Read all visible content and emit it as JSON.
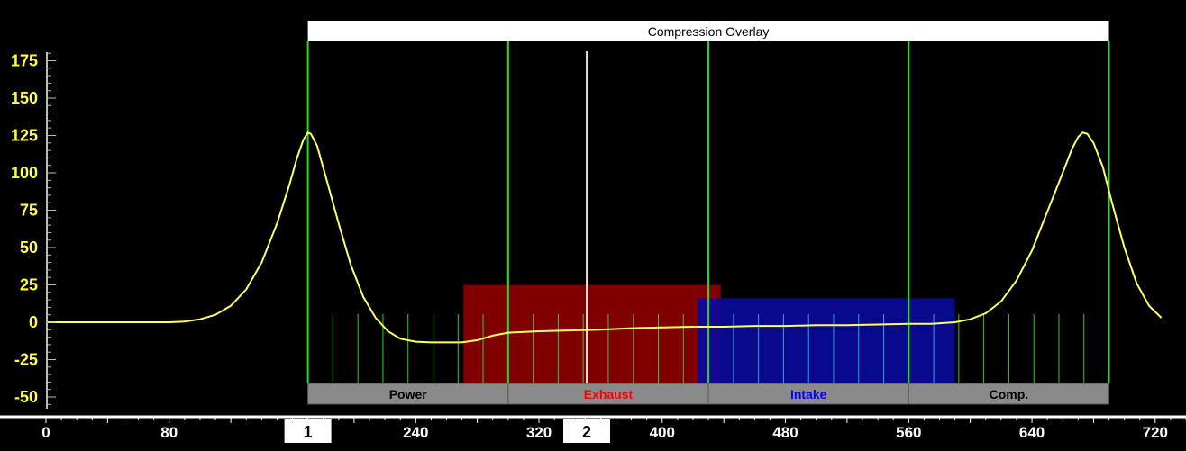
{
  "chart_data": {
    "type": "line",
    "title": "Compression Overlay",
    "xlim": [
      0,
      740
    ],
    "ylim": [
      -60,
      185
    ],
    "x_ticks": [
      0,
      80,
      240,
      320,
      400,
      480,
      560,
      640,
      720
    ],
    "y_ticks": [
      175,
      150,
      125,
      100,
      75,
      50,
      25,
      0,
      -25,
      -50
    ],
    "series": [
      {
        "color": "#ffff66",
        "points": [
          [
            0,
            0
          ],
          [
            60,
            0
          ],
          [
            80,
            0
          ],
          [
            90,
            0.5
          ],
          [
            100,
            2
          ],
          [
            110,
            5
          ],
          [
            120,
            11
          ],
          [
            130,
            22
          ],
          [
            140,
            40
          ],
          [
            150,
            66
          ],
          [
            158,
            92
          ],
          [
            163,
            110
          ],
          [
            167,
            122
          ],
          [
            170,
            127
          ],
          [
            172,
            126
          ],
          [
            176,
            118
          ],
          [
            182,
            96
          ],
          [
            190,
            66
          ],
          [
            198,
            38
          ],
          [
            206,
            17
          ],
          [
            214,
            3
          ],
          [
            222,
            -6
          ],
          [
            230,
            -11
          ],
          [
            240,
            -13
          ],
          [
            250,
            -13.5
          ],
          [
            270,
            -13.5
          ],
          [
            280,
            -12
          ],
          [
            290,
            -9
          ],
          [
            300,
            -7
          ],
          [
            320,
            -6
          ],
          [
            340,
            -5.5
          ],
          [
            360,
            -5
          ],
          [
            380,
            -4
          ],
          [
            400,
            -3.5
          ],
          [
            420,
            -3
          ],
          [
            440,
            -3
          ],
          [
            460,
            -2.5
          ],
          [
            480,
            -2.5
          ],
          [
            500,
            -2
          ],
          [
            520,
            -2
          ],
          [
            540,
            -1.5
          ],
          [
            560,
            -1
          ],
          [
            575,
            -1
          ],
          [
            590,
            0
          ],
          [
            600,
            2
          ],
          [
            610,
            6
          ],
          [
            620,
            14
          ],
          [
            630,
            28
          ],
          [
            640,
            48
          ],
          [
            650,
            74
          ],
          [
            660,
            100
          ],
          [
            666,
            116
          ],
          [
            670,
            124
          ],
          [
            673,
            127
          ],
          [
            676,
            126
          ],
          [
            680,
            120
          ],
          [
            686,
            104
          ],
          [
            692,
            80
          ],
          [
            700,
            50
          ],
          [
            708,
            26
          ],
          [
            716,
            11
          ],
          [
            724,
            3
          ]
        ]
      }
    ],
    "cycle_lines": [
      170,
      300,
      430,
      560,
      690
    ],
    "tdc_marker": 351,
    "markers": [
      {
        "label": "1",
        "x": 170
      },
      {
        "label": "2",
        "x": 351
      }
    ],
    "phases": [
      {
        "label": "Power",
        "from": 170,
        "to": 300,
        "color": "#000000"
      },
      {
        "label": "Exhaust",
        "from": 300,
        "to": 430,
        "color": "#ff0000"
      },
      {
        "label": "Intake",
        "from": 430,
        "to": 560,
        "color": "#0000ff"
      },
      {
        "label": "Comp.",
        "from": 560,
        "to": 690,
        "color": "#000000"
      }
    ],
    "valve_regions": [
      {
        "from": 271,
        "to": 438,
        "y_top": 25,
        "color": "#8b0000"
      },
      {
        "from": 423,
        "to": 590,
        "y_top": 16,
        "color": "#0a0a9a"
      }
    ],
    "grid": false,
    "legend": "none"
  }
}
